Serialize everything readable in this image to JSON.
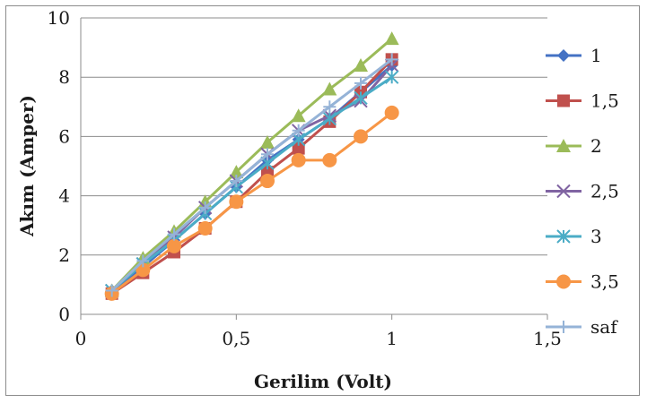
{
  "chart_data": {
    "type": "line",
    "title": "",
    "xlabel": "Gerilim (Volt)",
    "ylabel": "Akım (Amper)",
    "xlim": [
      0,
      1.5
    ],
    "ylim": [
      0,
      10
    ],
    "xticks": [
      0,
      0.5,
      1,
      1.5
    ],
    "xtick_labels": [
      "0",
      "0,5",
      "1",
      "1,5"
    ],
    "yticks": [
      0,
      2,
      4,
      6,
      8,
      10
    ],
    "ytick_labels": [
      "0",
      "2",
      "4",
      "6",
      "8",
      "10"
    ],
    "grid": "horizontal",
    "legend_position": "right",
    "x": [
      0.1,
      0.2,
      0.3,
      0.4,
      0.5,
      0.6,
      0.7,
      0.8,
      0.9,
      1.0
    ],
    "series": [
      {
        "name": "1",
        "color": "#4472c4",
        "marker": "diamond",
        "values": [
          0.8,
          1.6,
          2.5,
          3.4,
          4.3,
          5.2,
          5.9,
          6.6,
          7.5,
          8.4
        ]
      },
      {
        "name": "1,5",
        "color": "#c0504d",
        "marker": "square",
        "values": [
          0.7,
          1.4,
          2.1,
          2.9,
          3.8,
          4.8,
          5.6,
          6.5,
          7.5,
          8.6
        ]
      },
      {
        "name": "2",
        "color": "#9bbb59",
        "marker": "triangle",
        "values": [
          0.8,
          1.9,
          2.8,
          3.8,
          4.8,
          5.8,
          6.7,
          7.6,
          8.4,
          9.3
        ]
      },
      {
        "name": "2,5",
        "color": "#8064a2",
        "marker": "x",
        "values": [
          0.8,
          1.7,
          2.6,
          3.6,
          4.5,
          5.4,
          6.2,
          6.7,
          7.2,
          8.4
        ]
      },
      {
        "name": "3",
        "color": "#4bacc6",
        "marker": "asterisk",
        "values": [
          0.8,
          1.7,
          2.5,
          3.4,
          4.3,
          5.1,
          5.9,
          6.6,
          7.3,
          8.0
        ]
      },
      {
        "name": "3,5",
        "color": "#f79646",
        "marker": "circle",
        "values": [
          0.7,
          1.5,
          2.3,
          2.9,
          3.8,
          4.5,
          5.2,
          5.2,
          6.0,
          6.8
        ]
      },
      {
        "name": "saf",
        "color": "#95b3d7",
        "marker": "plus",
        "values": [
          0.8,
          1.8,
          2.7,
          3.6,
          4.5,
          5.4,
          6.2,
          7.0,
          7.8,
          8.6
        ]
      }
    ]
  }
}
